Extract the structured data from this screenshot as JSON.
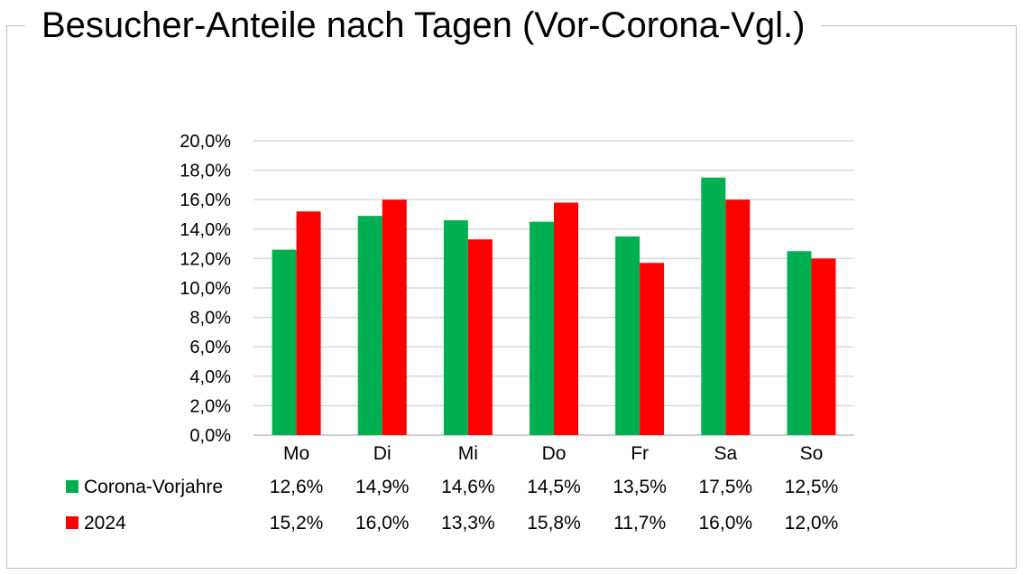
{
  "title": "Besucher-Anteile nach Tagen (Vor-Corona-Vgl.)",
  "chart_data": {
    "type": "bar",
    "categories": [
      "Mo",
      "Di",
      "Mi",
      "Do",
      "Fr",
      "Sa",
      "So"
    ],
    "series": [
      {
        "name": "Corona-Vorjahre",
        "color": "#00b050",
        "values": [
          12.6,
          14.9,
          14.6,
          14.5,
          13.5,
          17.5,
          12.5
        ],
        "labels": [
          "12,6%",
          "14,9%",
          "14,6%",
          "14,5%",
          "13,5%",
          "17,5%",
          "12,5%"
        ]
      },
      {
        "name": "2024",
        "color": "#ff0000",
        "values": [
          15.2,
          16.0,
          13.3,
          15.8,
          11.7,
          16.0,
          12.0
        ],
        "labels": [
          "15,2%",
          "16,0%",
          "13,3%",
          "15,8%",
          "11,7%",
          "16,0%",
          "12,0%"
        ]
      }
    ],
    "ylim": [
      0,
      20
    ],
    "yticks": [
      "0,0%",
      "2,0%",
      "4,0%",
      "6,0%",
      "8,0%",
      "10,0%",
      "12,0%",
      "14,0%",
      "16,0%",
      "18,0%",
      "20,0%"
    ],
    "grid": true,
    "legend": "data table below chart"
  }
}
